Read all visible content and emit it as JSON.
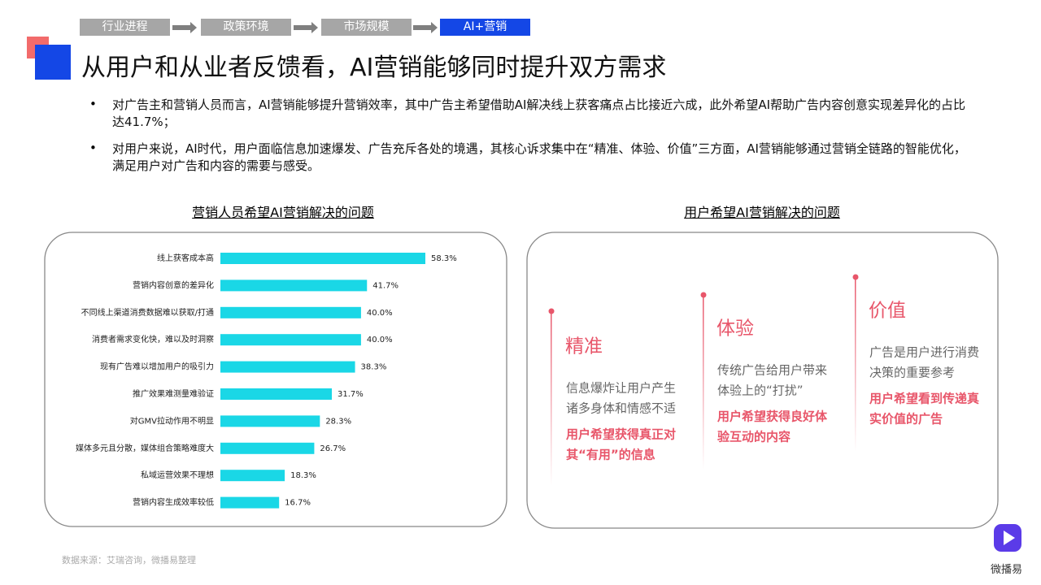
{
  "nav": {
    "steps": [
      "行业进程",
      "政策环境",
      "市场规模",
      "AI+营销"
    ]
  },
  "header": {
    "title": "从用户和从业者反馈看，AI营销能够同时提升双方需求"
  },
  "bullets": [
    "对广告主和营销人员而言，AI营销能够提升营销效率，其中广告主希望借助AI解决线上获客痛点占比接近六成，此外希望AI帮助广告内容创意实现差异化的占比达41.7%；",
    "对用户来说，AI时代，用户面临信息加速爆发、广告充斥各处的境遇，其核心诉求集中在“精准、体验、价值”三方面，AI营销能够通过营销全链路的智能优化，满足用户对广告和内容的需要与感受。"
  ],
  "chart_data": {
    "type": "hbar",
    "title": "营销人员希望AI营销解决的问题",
    "color": "#1ad7e6",
    "categories": [
      "线上获客成本高",
      "营销内容创意的差异化",
      "不同线上渠道消费数据难以获取/打通",
      "消费者需求变化快，难以及时洞察",
      "现有广告难以增加用户的吸引力",
      "推广效果难测量难验证",
      "对GMV拉动作用不明显",
      "媒体多元且分散，媒体组合策略难度大",
      "私域运营效果不理想",
      "营销内容生成效率较低"
    ],
    "values": [
      58.3,
      41.7,
      40.0,
      40.0,
      38.3,
      31.7,
      28.3,
      26.7,
      18.3,
      16.7
    ],
    "value_labels": [
      "58.3%",
      "41.7%",
      "40.0%",
      "40.0%",
      "38.3%",
      "31.7%",
      "28.3%",
      "26.7%",
      "18.3%",
      "16.7%"
    ]
  },
  "user_panel": {
    "title": "用户希望AI营销解决的问题",
    "items": [
      {
        "title": "精准",
        "desc": [
          "信息爆炸让用户产生",
          "诸多身体和情感不适"
        ],
        "need": [
          "用户希望获得真正对",
          "其“有用”的信息"
        ]
      },
      {
        "title": "体验",
        "desc": [
          "传统广告给用户带来",
          "体验上的“打扰”"
        ],
        "need": [
          "用户希望获得良好体",
          "验互动的内容"
        ]
      },
      {
        "title": "价值",
        "desc": [
          "广告是用户进行消费",
          "决策的重要参考"
        ],
        "need": [
          "用户希望看到传递真",
          "实价值的广告"
        ]
      }
    ]
  },
  "footer": {
    "source": "数据来源：艾瑞咨询，微播易整理",
    "logo": "微播易"
  }
}
